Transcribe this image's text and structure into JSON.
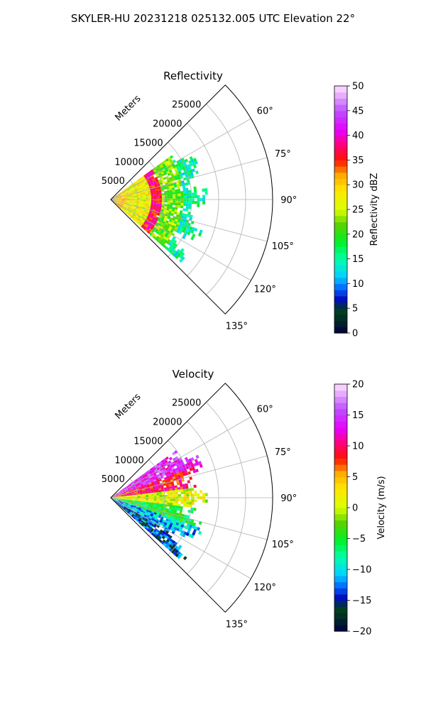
{
  "figure": {
    "suptitle": "SKYLER-HU  20231218  025132.005 UTC Elevation 22°"
  },
  "chart_data": [
    {
      "type": "heatmap",
      "polar": true,
      "title": "Reflectivity",
      "radial_label": "Meters",
      "radial_ticks": [
        5000,
        10000,
        15000,
        20000,
        25000
      ],
      "radial_tick_labels": [
        "5000",
        "10000",
        "15000",
        "20000",
        "25000"
      ],
      "rmax": 30000,
      "theta_range_deg": [
        45,
        135
      ],
      "theta_ticks": [
        60,
        75,
        90,
        105,
        120,
        135
      ],
      "theta_tick_labels": [
        "60°",
        "75°",
        "90°",
        "105°",
        "120°",
        "135°"
      ],
      "grid": true,
      "colorbar": {
        "label": "Reflectivity dBZ",
        "range": [
          0,
          50
        ],
        "ticks": [
          0,
          5,
          10,
          15,
          20,
          25,
          30,
          35,
          40,
          45,
          50
        ],
        "tick_labels": [
          "0",
          "5",
          "10",
          "15",
          "20",
          "25",
          "30",
          "35",
          "40",
          "45",
          "50"
        ]
      },
      "field_extent": {
        "data_theta_deg": [
          54,
          132
        ],
        "data_r_max_m": 18000,
        "core": [
          {
            "r_m": [
              0,
              3000
            ],
            "value": 30
          },
          {
            "r_m": [
              3000,
              7500
            ],
            "value": 27
          },
          {
            "r_m": [
              7500,
              9500
            ],
            "value": 37
          },
          {
            "r_m": [
              9500,
              13500
            ],
            "value": 22
          },
          {
            "r_m": [
              13500,
              18000
            ],
            "value": 15
          }
        ]
      }
    },
    {
      "type": "heatmap",
      "polar": true,
      "title": "Velocity",
      "radial_label": "Meters",
      "radial_ticks": [
        5000,
        10000,
        15000,
        20000,
        25000
      ],
      "radial_tick_labels": [
        "5000",
        "10000",
        "15000",
        "20000",
        "25000"
      ],
      "rmax": 30000,
      "theta_range_deg": [
        45,
        135
      ],
      "theta_ticks": [
        60,
        75,
        90,
        105,
        120,
        135
      ],
      "theta_tick_labels": [
        "60°",
        "75°",
        "90°",
        "105°",
        "120°",
        "135°"
      ],
      "grid": true,
      "colorbar": {
        "label": "Velocity (m/s)",
        "range": [
          -20,
          20
        ],
        "ticks": [
          -20,
          -15,
          -10,
          -5,
          0,
          5,
          10,
          15,
          20
        ],
        "tick_labels": [
          "−20",
          "−15",
          "−10",
          "−5",
          "0",
          "5",
          "10",
          "15",
          "20"
        ]
      },
      "field_extent": {
        "data_theta_deg": [
          54,
          132
        ],
        "data_r_max_m": 18000,
        "sectors": [
          {
            "theta_deg": [
              54,
              70
            ],
            "value": 14
          },
          {
            "theta_deg": [
              70,
              84
            ],
            "value": 9
          },
          {
            "theta_deg": [
              84,
              96
            ],
            "value": 1
          },
          {
            "theta_deg": [
              96,
              108
            ],
            "value": -5
          },
          {
            "theta_deg": [
              108,
              120
            ],
            "value": -11
          },
          {
            "theta_deg": [
              120,
              132
            ],
            "value": -14
          }
        ]
      }
    }
  ]
}
